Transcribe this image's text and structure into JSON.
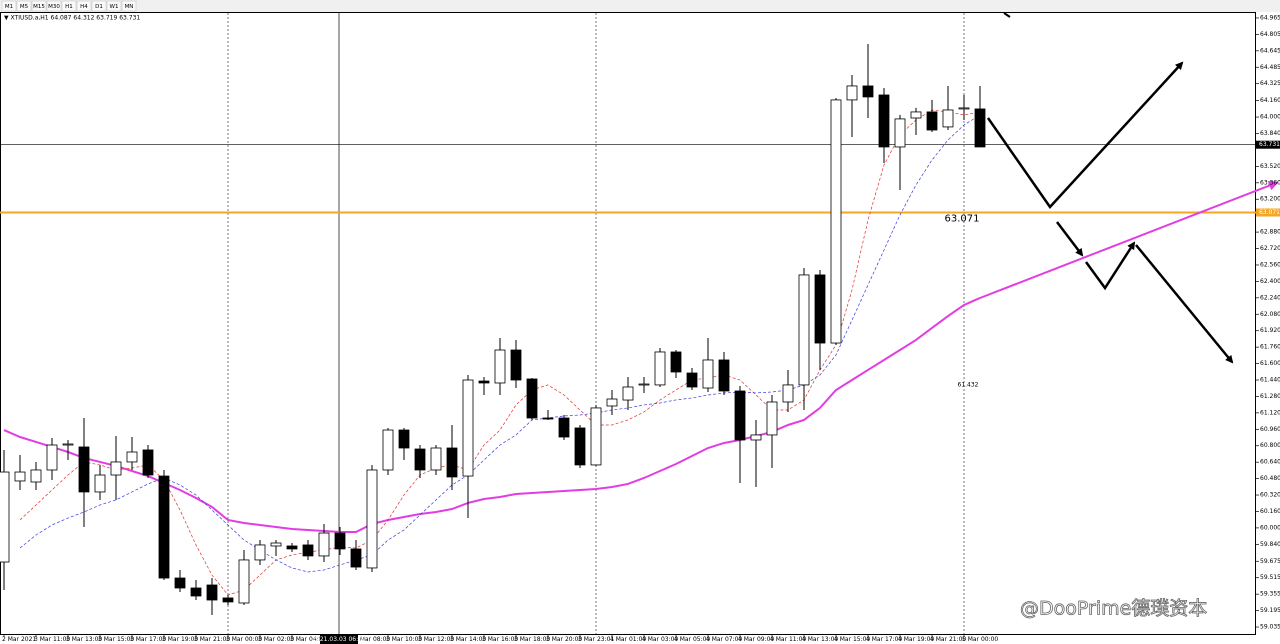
{
  "chart_data": {
    "type": "candlestick",
    "symbol_info": "▼ XTIUSD.a,H1  64.087 64.312 63.719 63.731",
    "timeframes": [
      "M1",
      "M5",
      "M15",
      "M30",
      "H1",
      "H4",
      "D1",
      "W1",
      "MN"
    ],
    "watermark": "@DooPrime德璞资本",
    "categories": [
      "2 Mar 2021",
      null,
      "3 Mar 11:00",
      null,
      "3 Mar 13:00",
      null,
      "3 Mar 15:00",
      null,
      "3 Mar 17:00",
      null,
      "3 Mar 19:00",
      null,
      "3 Mar 21:00",
      null,
      "3 Mar 00:00",
      null,
      "3 Mar 02:00",
      null,
      "3 Mar 04:00",
      null,
      null,
      null,
      "3 Mar 08:00",
      null,
      "3 Mar 10:00",
      null,
      "3 Mar 12:00",
      null,
      "3 Mar 14:00",
      null,
      "3 Mar 16:00",
      null,
      "3 Mar 18:00",
      null,
      "3 Mar 20:00",
      null,
      "3 Mar 23:01",
      null,
      "4 Mar 01:00",
      null,
      "4 Mar 03:00",
      null,
      "4 Mar 05:00",
      null,
      "4 Mar 07:00",
      null,
      "4 Mar 09:00",
      null,
      "4 Mar 11:00",
      null,
      "4 Mar 13:00",
      null,
      "4 Mar 15:00",
      null,
      "4 Mar 17:00",
      null,
      "4 Mar 19:00",
      null,
      "4 Mar 21:00",
      null,
      "5 Mar 00:00",
      null
    ],
    "open": [
      59.668,
      60.457,
      60.447,
      60.564,
      60.807,
      60.788,
      60.35,
      60.515,
      60.642,
      60.759,
      60.505,
      59.512,
      59.415,
      59.444,
      59.318,
      59.269,
      59.688,
      59.824,
      59.824,
      59.834,
      59.727,
      59.95,
      59.795,
      59.61,
      60.564,
      60.953,
      60.768,
      60.564,
      60.778,
      60.505,
      61.43,
      61.411,
      61.732,
      61.45,
      61.07,
      61.07,
      60.973,
      60.613,
      61.187,
      61.245,
      61.392,
      61.392,
      61.713,
      61.508,
      61.362,
      61.635,
      61.333,
      60.856,
      60.905,
      61.226,
      61.392,
      62.463,
      61.8,
      64.167,
      64.303,
      64.215,
      63.709,
      63.991,
      64.05,
      63.904,
      64.079,
      64.079
    ],
    "high": [
      60.759,
      60.71,
      60.642,
      60.875,
      60.856,
      61.07,
      60.613,
      60.895,
      60.885,
      60.807,
      60.564,
      59.59,
      59.493,
      59.512,
      59.347,
      59.785,
      59.882,
      59.882,
      59.853,
      59.882,
      60.038,
      60.009,
      59.882,
      60.613,
      60.973,
      60.973,
      60.807,
      60.807,
      61.002,
      61.489,
      61.469,
      61.849,
      61.83,
      61.46,
      61.148,
      61.099,
      61.002,
      61.197,
      61.343,
      61.469,
      61.469,
      61.752,
      61.732,
      61.557,
      61.849,
      61.713,
      61.382,
      61.051,
      61.294,
      61.538,
      62.531,
      62.511,
      64.186,
      64.41,
      64.712,
      64.283,
      64.021,
      64.089,
      64.167,
      64.303,
      64.215,
      64.303
    ],
    "low": [
      59.395,
      60.369,
      60.369,
      60.467,
      60.661,
      60.009,
      60.272,
      60.272,
      60.564,
      60.486,
      59.493,
      59.376,
      59.298,
      59.152,
      59.249,
      59.249,
      59.639,
      59.727,
      59.765,
      59.688,
      59.668,
      59.736,
      59.59,
      59.571,
      60.515,
      60.661,
      60.486,
      60.515,
      60.369,
      60.096,
      61.294,
      61.294,
      61.362,
      61.051,
      61.051,
      60.856,
      60.583,
      60.603,
      61.099,
      61.148,
      61.314,
      61.372,
      61.46,
      61.343,
      61.323,
      61.294,
      60.437,
      60.398,
      60.583,
      61.129,
      61.148,
      61.538,
      61.781,
      63.806,
      63.991,
      63.553,
      63.29,
      63.826,
      63.855,
      63.874,
      63.972,
      63.709
    ],
    "close": [
      60.544,
      60.544,
      60.564,
      60.807,
      60.817,
      60.35,
      60.515,
      60.642,
      60.739,
      60.515,
      59.512,
      59.415,
      59.337,
      59.298,
      59.279,
      59.688,
      59.834,
      59.853,
      59.795,
      59.727,
      59.95,
      59.795,
      59.619,
      60.564,
      60.953,
      60.778,
      60.564,
      60.778,
      60.496,
      61.44,
      61.411,
      61.732,
      61.44,
      61.07,
      61.06,
      60.885,
      60.613,
      61.168,
      61.255,
      61.372,
      61.401,
      61.713,
      61.518,
      61.372,
      61.635,
      61.333,
      60.856,
      60.905,
      61.226,
      61.392,
      62.463,
      61.8,
      64.167,
      64.303,
      64.196,
      63.709,
      63.982,
      64.05,
      63.874,
      64.069,
      64.089,
      63.709
    ],
    "up_color": "#ffffff",
    "down_color": "#000000",
    "series": [
      {
        "color": "#e23de2",
        "width": 2,
        "dashed": false,
        "values": [
          60.953,
          60.885,
          60.837,
          60.788,
          60.739,
          60.681,
          60.642,
          60.603,
          60.554,
          60.505,
          60.437,
          60.369,
          60.291,
          60.204,
          60.077,
          60.048,
          60.028,
          60.009,
          59.989,
          59.98,
          59.97,
          59.96,
          59.96,
          60.038,
          60.077,
          60.106,
          60.135,
          60.155,
          60.184,
          60.243,
          60.281,
          60.301,
          60.33,
          60.34,
          60.35,
          60.359,
          60.369,
          60.379,
          60.398,
          60.428,
          60.486,
          60.554,
          60.622,
          60.7,
          60.778,
          60.827,
          60.856,
          60.895,
          60.934,
          61.002,
          61.051,
          61.168,
          61.343,
          61.44,
          61.538,
          61.635,
          61.732,
          61.83,
          61.947,
          62.063,
          62.17,
          62.239
        ]
      },
      {
        "color": "#e0302a",
        "width": 0.7,
        "dashed": true,
        "values": [
          null,
          60.077,
          60.223,
          60.369,
          60.515,
          60.642,
          60.613,
          60.564,
          60.583,
          60.613,
          60.467,
          60.174,
          59.834,
          59.541,
          59.347,
          59.395,
          59.541,
          59.688,
          59.736,
          59.765,
          59.785,
          59.814,
          59.804,
          59.882,
          60.077,
          60.32,
          60.515,
          60.583,
          60.613,
          60.564,
          60.807,
          60.953,
          61.197,
          61.343,
          61.392,
          61.294,
          61.148,
          61.002,
          61.002,
          61.051,
          61.129,
          61.246,
          61.343,
          61.44,
          61.46,
          61.489,
          61.44,
          61.294,
          61.148,
          61.148,
          61.246,
          61.538,
          61.781,
          62.317,
          62.998,
          63.534,
          63.826,
          63.972,
          64.069,
          64.05,
          64.021,
          64.05
        ]
      },
      {
        "color": "#3a3ae0",
        "width": 0.7,
        "dashed": true,
        "values": [
          null,
          59.804,
          59.931,
          60.028,
          60.096,
          60.155,
          60.223,
          60.272,
          60.35,
          60.428,
          60.486,
          60.418,
          60.32,
          60.174,
          60.028,
          59.882,
          59.785,
          59.688,
          59.61,
          59.571,
          59.59,
          59.639,
          59.688,
          59.736,
          59.882,
          59.98,
          60.126,
          60.272,
          60.418,
          60.515,
          60.661,
          60.807,
          60.905,
          61.051,
          61.07,
          61.09,
          61.099,
          61.119,
          61.148,
          61.168,
          61.197,
          61.216,
          61.246,
          61.265,
          61.294,
          61.314,
          61.323,
          61.314,
          61.323,
          61.343,
          61.392,
          61.489,
          61.684,
          62.024,
          62.365,
          62.706,
          63.047,
          63.339,
          63.582,
          63.777,
          63.923,
          64.021
        ]
      }
    ],
    "crosshair": {
      "price": 63.731,
      "time": "2021.03.03 06:00"
    },
    "level_line": {
      "value": 63.071,
      "color": "#f5a623"
    },
    "annotation": "61.432",
    "ylim": [
      58.967,
      65.023
    ],
    "yticks": [
      64.965,
      64.805,
      64.645,
      64.485,
      64.325,
      {
        "value": 64.16,
        "label": "64.160"
      },
      {
        "value": 64,
        "label": "64.000"
      },
      {
        "value": 63.84,
        "label": "63.840"
      },
      {
        "value": 63.52,
        "label": "63.520"
      },
      {
        "value": 63.36,
        "label": "63.360"
      },
      {
        "value": 63.2,
        "label": "63.200"
      },
      {
        "value": 62.88,
        "label": "62.880"
      },
      {
        "value": 62.72,
        "label": "62.720"
      },
      {
        "value": 62.56,
        "label": "62.560"
      },
      {
        "value": 62.4,
        "label": "62.400"
      },
      {
        "value": 62.24,
        "label": "62.240"
      },
      {
        "value": 62.08,
        "label": "62.080"
      },
      {
        "value": 61.92,
        "label": "61.920"
      },
      {
        "value": 61.76,
        "label": "61.760"
      },
      {
        "value": 61.6,
        "label": "61.600"
      },
      {
        "value": 61.44,
        "label": "61.440"
      },
      {
        "value": 61.28,
        "label": "61.280"
      },
      {
        "value": 61.12,
        "label": "61.120"
      },
      {
        "value": 60.96,
        "label": "60.960"
      },
      {
        "value": 60.8,
        "label": "60.800"
      },
      {
        "value": 60.64,
        "label": "60.640"
      },
      {
        "value": 60.48,
        "label": "60.480"
      },
      {
        "value": 60.32,
        "label": "60.320"
      },
      {
        "value": 60.16,
        "label": "60.160"
      },
      {
        "value": 60,
        "label": "60.000"
      },
      {
        "value": 59.84,
        "label": "59.840"
      },
      59.675,
      59.515,
      59.355,
      59.195,
      59.035
    ]
  }
}
